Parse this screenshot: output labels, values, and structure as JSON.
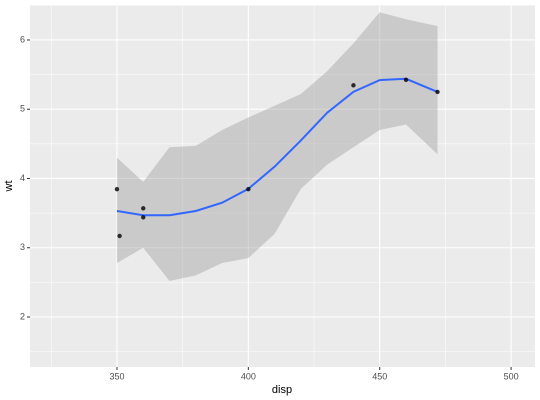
{
  "chart_data": {
    "type": "scatter",
    "x_label": "disp",
    "y_label": "wt",
    "x": [
      350,
      351,
      360,
      360,
      400,
      440,
      460,
      472
    ],
    "values": [
      3.845,
      3.17,
      3.44,
      3.57,
      3.845,
      5.345,
      5.424,
      5.25
    ],
    "color": "#000000",
    "smooth": {
      "x": [
        350,
        360,
        370,
        380,
        390,
        400,
        410,
        420,
        430,
        440,
        450,
        460,
        472
      ],
      "values": [
        3.53,
        3.47,
        3.47,
        3.53,
        3.65,
        3.85,
        4.17,
        4.55,
        4.95,
        5.25,
        5.42,
        5.44,
        5.25
      ],
      "upper": [
        4.3,
        3.95,
        4.45,
        4.47,
        4.7,
        4.88,
        5.05,
        5.22,
        5.55,
        5.95,
        6.4,
        6.3,
        6.2
      ],
      "lower": [
        2.78,
        3.0,
        2.52,
        2.6,
        2.78,
        2.85,
        3.2,
        3.85,
        4.2,
        4.45,
        4.7,
        4.78,
        4.35
      ],
      "color": "#3366ff",
      "fill": "#999999"
    },
    "xlim": [
      316.9,
      509.1
    ],
    "ylim": [
      1.278,
      6.505
    ],
    "xticks": [
      350,
      400,
      450,
      500
    ],
    "yticks": [
      2,
      3,
      4,
      5,
      6
    ],
    "grid": true
  }
}
